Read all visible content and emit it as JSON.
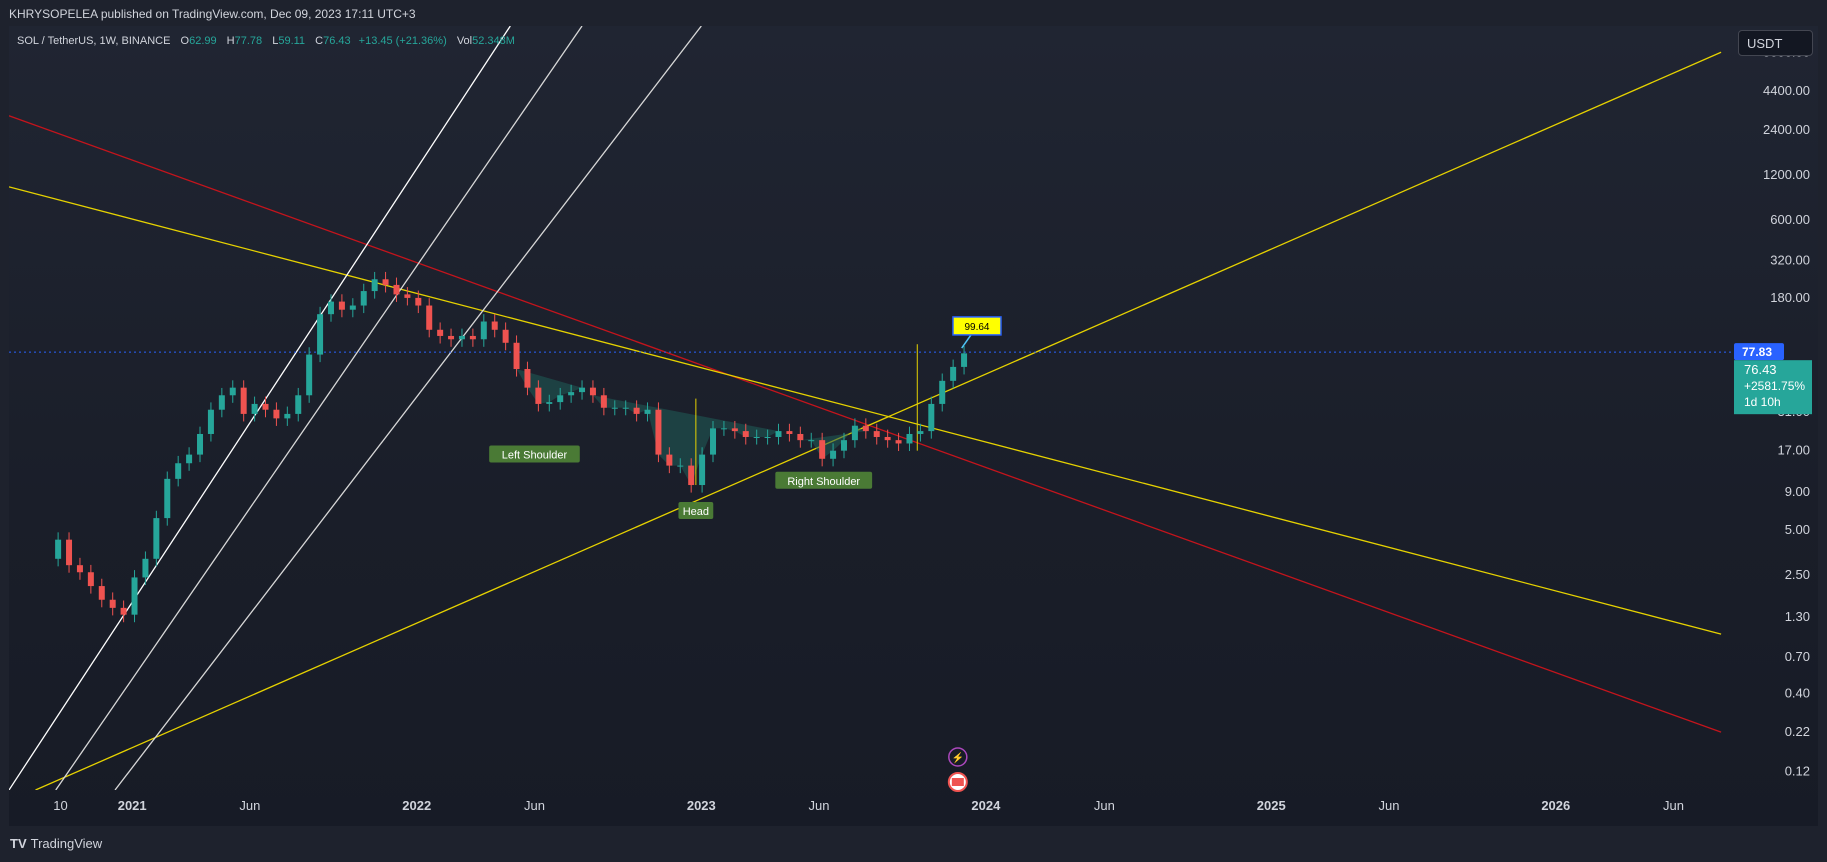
{
  "header": {
    "publisher_text": "KHRYSOPELEA published on TradingView.com, Dec 09, 2023 17:11 UTC+3"
  },
  "legend": {
    "symbol": "SOL / TetherUS, 1W, BINANCE",
    "open_label": "O",
    "open_value": "62.99",
    "high_label": "H",
    "high_value": "77.78",
    "low_label": "L",
    "low_value": "59.11",
    "close_label": "C",
    "close_value": "76.43",
    "change": "+13.45 (+21.36%)",
    "vol_label": "Vol",
    "vol_value": "52.348M"
  },
  "currency_button": "USDT",
  "footer": {
    "logo_mark": "TV",
    "logo_text": "TradingView"
  },
  "colors": {
    "background": "#1e222d",
    "up": "#26a69a",
    "down": "#ef5350",
    "yellow_line": "#e6d200",
    "red_line": "#c4141c",
    "white_line": "#e8e8e8",
    "price_tag": "#2962ff",
    "last_price_tag": "#26a69a",
    "pattern_fill": "#1f5c57",
    "pattern_label": "#4a7a35"
  },
  "chart_data": {
    "type": "candlestick",
    "y_scale": "log",
    "ylim": [
      0.09,
      12000
    ],
    "y_ticks": [
      8000,
      4400,
      2400,
      1200,
      600,
      320,
      180,
      77.83,
      31,
      17,
      9,
      5,
      2.5,
      1.3,
      0.7,
      0.4,
      0.22,
      0.12
    ],
    "y_tick_labels": [
      "8000.00",
      "4400.00",
      "2400.00",
      "1200.00",
      "600.00",
      "320.00",
      "180.00",
      "",
      "31.00",
      "17.00",
      "9.00",
      "5.00",
      "2.50",
      "1.30",
      "0.70",
      "0.40",
      "0.22",
      "0.12"
    ],
    "xlim": [
      "2020-07-27",
      "2026-08-15"
    ],
    "x_ticks": [
      {
        "date": "2020-10-01",
        "label": "10",
        "bold": false
      },
      {
        "date": "2021-01-01",
        "label": "2021",
        "bold": true
      },
      {
        "date": "2021-06-01",
        "label": "Jun",
        "bold": false
      },
      {
        "date": "2022-01-01",
        "label": "2022",
        "bold": true
      },
      {
        "date": "2022-06-01",
        "label": "Jun",
        "bold": false
      },
      {
        "date": "2023-01-01",
        "label": "2023",
        "bold": true
      },
      {
        "date": "2023-06-01",
        "label": "Jun",
        "bold": false
      },
      {
        "date": "2024-01-01",
        "label": "2024",
        "bold": true
      },
      {
        "date": "2024-06-01",
        "label": "Jun",
        "bold": false
      },
      {
        "date": "2025-01-01",
        "label": "2025",
        "bold": true
      },
      {
        "date": "2025-06-01",
        "label": "Jun",
        "bold": false
      },
      {
        "date": "2026-01-01",
        "label": "2026",
        "bold": true
      },
      {
        "date": "2026-06-01",
        "label": "Jun",
        "bold": false
      }
    ],
    "price_path": [
      [
        "2020-09-14",
        3.2
      ],
      [
        "2020-09-28",
        4.3
      ],
      [
        "2020-10-12",
        2.9
      ],
      [
        "2020-10-26",
        2.6
      ],
      [
        "2020-11-09",
        2.1
      ],
      [
        "2020-11-23",
        1.7
      ],
      [
        "2020-12-07",
        1.5
      ],
      [
        "2020-12-21",
        1.35
      ],
      [
        "2021-01-04",
        2.4
      ],
      [
        "2021-01-18",
        3.2
      ],
      [
        "2021-02-01",
        6
      ],
      [
        "2021-02-15",
        11
      ],
      [
        "2021-03-01",
        14
      ],
      [
        "2021-03-15",
        16
      ],
      [
        "2021-03-29",
        22
      ],
      [
        "2021-04-12",
        32
      ],
      [
        "2021-04-26",
        40
      ],
      [
        "2021-05-10",
        45
      ],
      [
        "2021-05-24",
        30
      ],
      [
        "2021-06-07",
        35
      ],
      [
        "2021-06-21",
        32
      ],
      [
        "2021-07-05",
        28
      ],
      [
        "2021-07-19",
        30
      ],
      [
        "2021-08-02",
        40
      ],
      [
        "2021-08-16",
        75
      ],
      [
        "2021-08-30",
        140
      ],
      [
        "2021-09-13",
        170
      ],
      [
        "2021-09-27",
        150
      ],
      [
        "2021-10-11",
        160
      ],
      [
        "2021-10-25",
        200
      ],
      [
        "2021-11-08",
        240
      ],
      [
        "2021-11-22",
        220
      ],
      [
        "2021-12-06",
        190
      ],
      [
        "2021-12-20",
        180
      ],
      [
        "2022-01-03",
        160
      ],
      [
        "2022-01-17",
        110
      ],
      [
        "2022-01-31",
        100
      ],
      [
        "2022-02-14",
        95
      ],
      [
        "2022-02-28",
        100
      ],
      [
        "2022-03-14",
        95
      ],
      [
        "2022-03-28",
        125
      ],
      [
        "2022-04-11",
        110
      ],
      [
        "2022-04-25",
        90
      ],
      [
        "2022-05-09",
        60
      ],
      [
        "2022-05-23",
        45
      ],
      [
        "2022-06-06",
        35
      ],
      [
        "2022-06-20",
        36
      ],
      [
        "2022-07-04",
        40
      ],
      [
        "2022-07-18",
        42
      ],
      [
        "2022-08-01",
        45
      ],
      [
        "2022-08-15",
        40
      ],
      [
        "2022-08-29",
        33
      ],
      [
        "2022-09-12",
        33
      ],
      [
        "2022-09-26",
        33
      ],
      [
        "2022-10-10",
        30
      ],
      [
        "2022-10-24",
        32
      ],
      [
        "2022-11-07",
        16
      ],
      [
        "2022-11-21",
        13.5
      ],
      [
        "2022-12-05",
        13.5
      ],
      [
        "2022-12-19",
        10
      ],
      [
        "2023-01-02",
        16
      ],
      [
        "2023-01-16",
        24
      ],
      [
        "2023-01-30",
        24
      ],
      [
        "2023-02-13",
        23
      ],
      [
        "2023-02-27",
        21
      ],
      [
        "2023-03-13",
        21
      ],
      [
        "2023-03-27",
        21
      ],
      [
        "2023-04-10",
        23
      ],
      [
        "2023-04-24",
        22
      ],
      [
        "2023-05-08",
        20
      ],
      [
        "2023-05-22",
        20
      ],
      [
        "2023-06-05",
        15
      ],
      [
        "2023-06-19",
        17
      ],
      [
        "2023-07-03",
        20
      ],
      [
        "2023-07-17",
        25
      ],
      [
        "2023-07-31",
        23
      ],
      [
        "2023-08-14",
        21
      ],
      [
        "2023-08-28",
        20
      ],
      [
        "2023-09-11",
        19
      ],
      [
        "2023-09-25",
        22
      ],
      [
        "2023-10-09",
        23
      ],
      [
        "2023-10-23",
        35
      ],
      [
        "2023-11-06",
        50
      ],
      [
        "2023-11-20",
        62
      ],
      [
        "2023-12-04",
        76.43
      ]
    ],
    "current_price": 77.83,
    "current_price_label": "77.83",
    "last_close_label": "76.43",
    "last_change_label": "+2581.75%",
    "countdown_label": "1d 10h",
    "target_label": "99.64",
    "patterns": [
      {
        "label": "Left Shoulder",
        "date": "2022-06-01",
        "price": 22.5
      },
      {
        "label": "Head",
        "date": "2022-12-25",
        "price": 10
      },
      {
        "label": "Right Shoulder",
        "date": "2023-06-07",
        "price": 15
      }
    ],
    "lines": [
      {
        "color": "#c4141c",
        "p1": [
          "2020-07-27",
          3000
        ],
        "p2": [
          "2026-08-01",
          0.22
        ]
      },
      {
        "color": "#e6d200",
        "p1": [
          "2020-07-27",
          1000
        ],
        "p2": [
          "2026-08-01",
          1.0
        ]
      },
      {
        "color": "#e6d200",
        "p1": [
          "2020-08-30",
          0.09
        ],
        "p2": [
          "2026-08-01",
          8000
        ]
      },
      {
        "color": "#ffffff",
        "p1": [
          "2020-07-27",
          0.09
        ],
        "p2": [
          "2022-05-01",
          12000
        ]
      },
      {
        "color": "#d8d8d8",
        "p1": [
          "2020-09-25",
          0.09
        ],
        "p2": [
          "2022-08-01",
          12000
        ]
      },
      {
        "color": "#d8d8d8",
        "p1": [
          "2020-12-10",
          0.09
        ],
        "p2": [
          "2023-01-01",
          12000
        ]
      }
    ]
  }
}
